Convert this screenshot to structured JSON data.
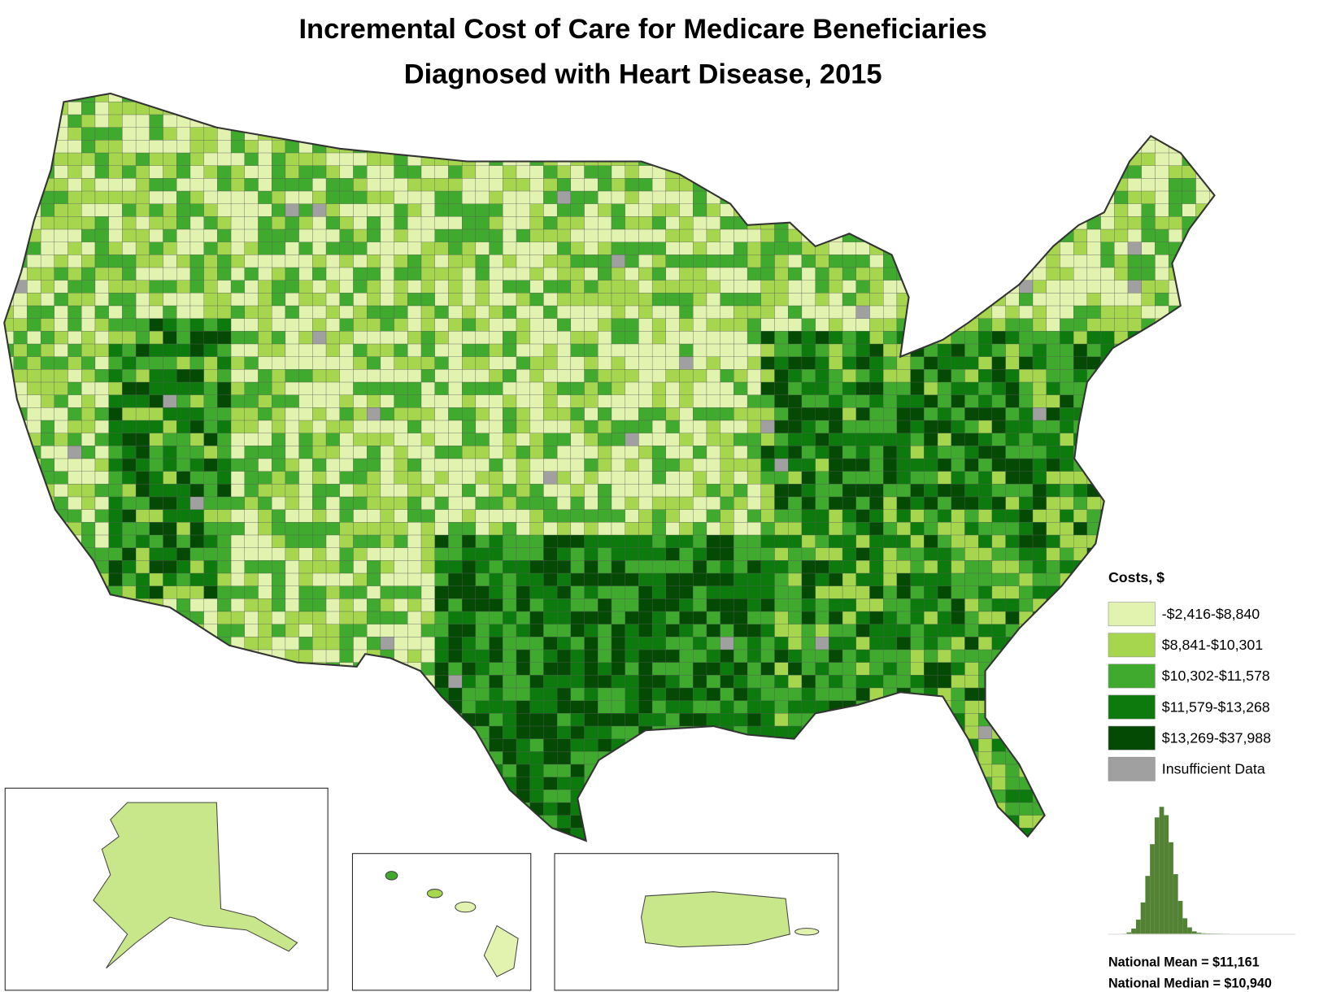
{
  "header": {
    "title": [
      "Incremental Cost of Care for Medicare Beneficiaries",
      "Diagnosed with Heart Disease, 2015"
    ]
  },
  "legend": {
    "title": "Costs, $",
    "items": [
      {
        "label": "-$2,416-$8,840",
        "color": "#e2f3b0"
      },
      {
        "label": "$8,841-$10,301",
        "color": "#a6d64e"
      },
      {
        "label": "$10,302-$11,578",
        "color": "#3faa2e"
      },
      {
        "label": "$11,579-$13,268",
        "color": "#0d7a0d"
      },
      {
        "label": "$13,269-$37,988",
        "color": "#044a04"
      },
      {
        "label": "Insufficient Data",
        "color": "#a0a0a0"
      }
    ]
  },
  "notes": [
    "National Mean = $11,161",
    "National Median = $10,940"
  ]
}
